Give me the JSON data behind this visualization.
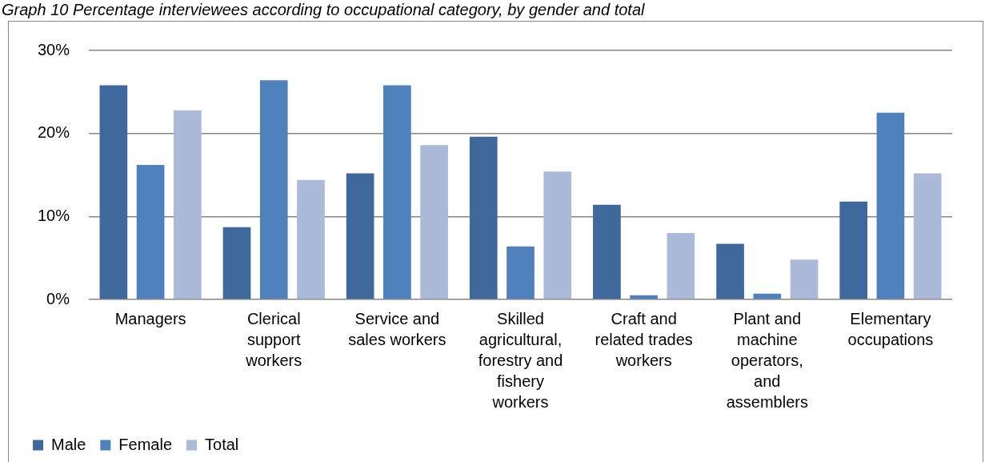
{
  "chart_data": {
    "type": "bar",
    "title": "Graph 10 Percentage interviewees according to occupational category, by gender and total",
    "categories": [
      "Managers",
      "Clerical support workers",
      "Service and sales workers",
      "Skilled agricultural, forestry and fishery workers",
      "Craft and related trades workers",
      "Plant and machine operators, and assemblers",
      "Elementary occupations"
    ],
    "series": [
      {
        "name": "Male",
        "color": "#3f699c",
        "values": [
          25.8,
          8.7,
          15.2,
          19.6,
          11.4,
          6.7,
          11.8
        ]
      },
      {
        "name": "Female",
        "color": "#4f81bd",
        "values": [
          16.2,
          26.4,
          25.8,
          6.4,
          0.5,
          0.7,
          22.5
        ]
      },
      {
        "name": "Total",
        "color": "#aabad8",
        "values": [
          22.8,
          14.4,
          18.6,
          15.4,
          8.0,
          4.8,
          15.2
        ]
      }
    ],
    "ylim": [
      0,
      30
    ],
    "yticks": [
      {
        "value": 0,
        "label": "0%"
      },
      {
        "value": 10,
        "label": "10%"
      },
      {
        "value": 20,
        "label": "20%"
      },
      {
        "value": 30,
        "label": "30%"
      }
    ],
    "grid": "y",
    "legend": "bottom left"
  }
}
